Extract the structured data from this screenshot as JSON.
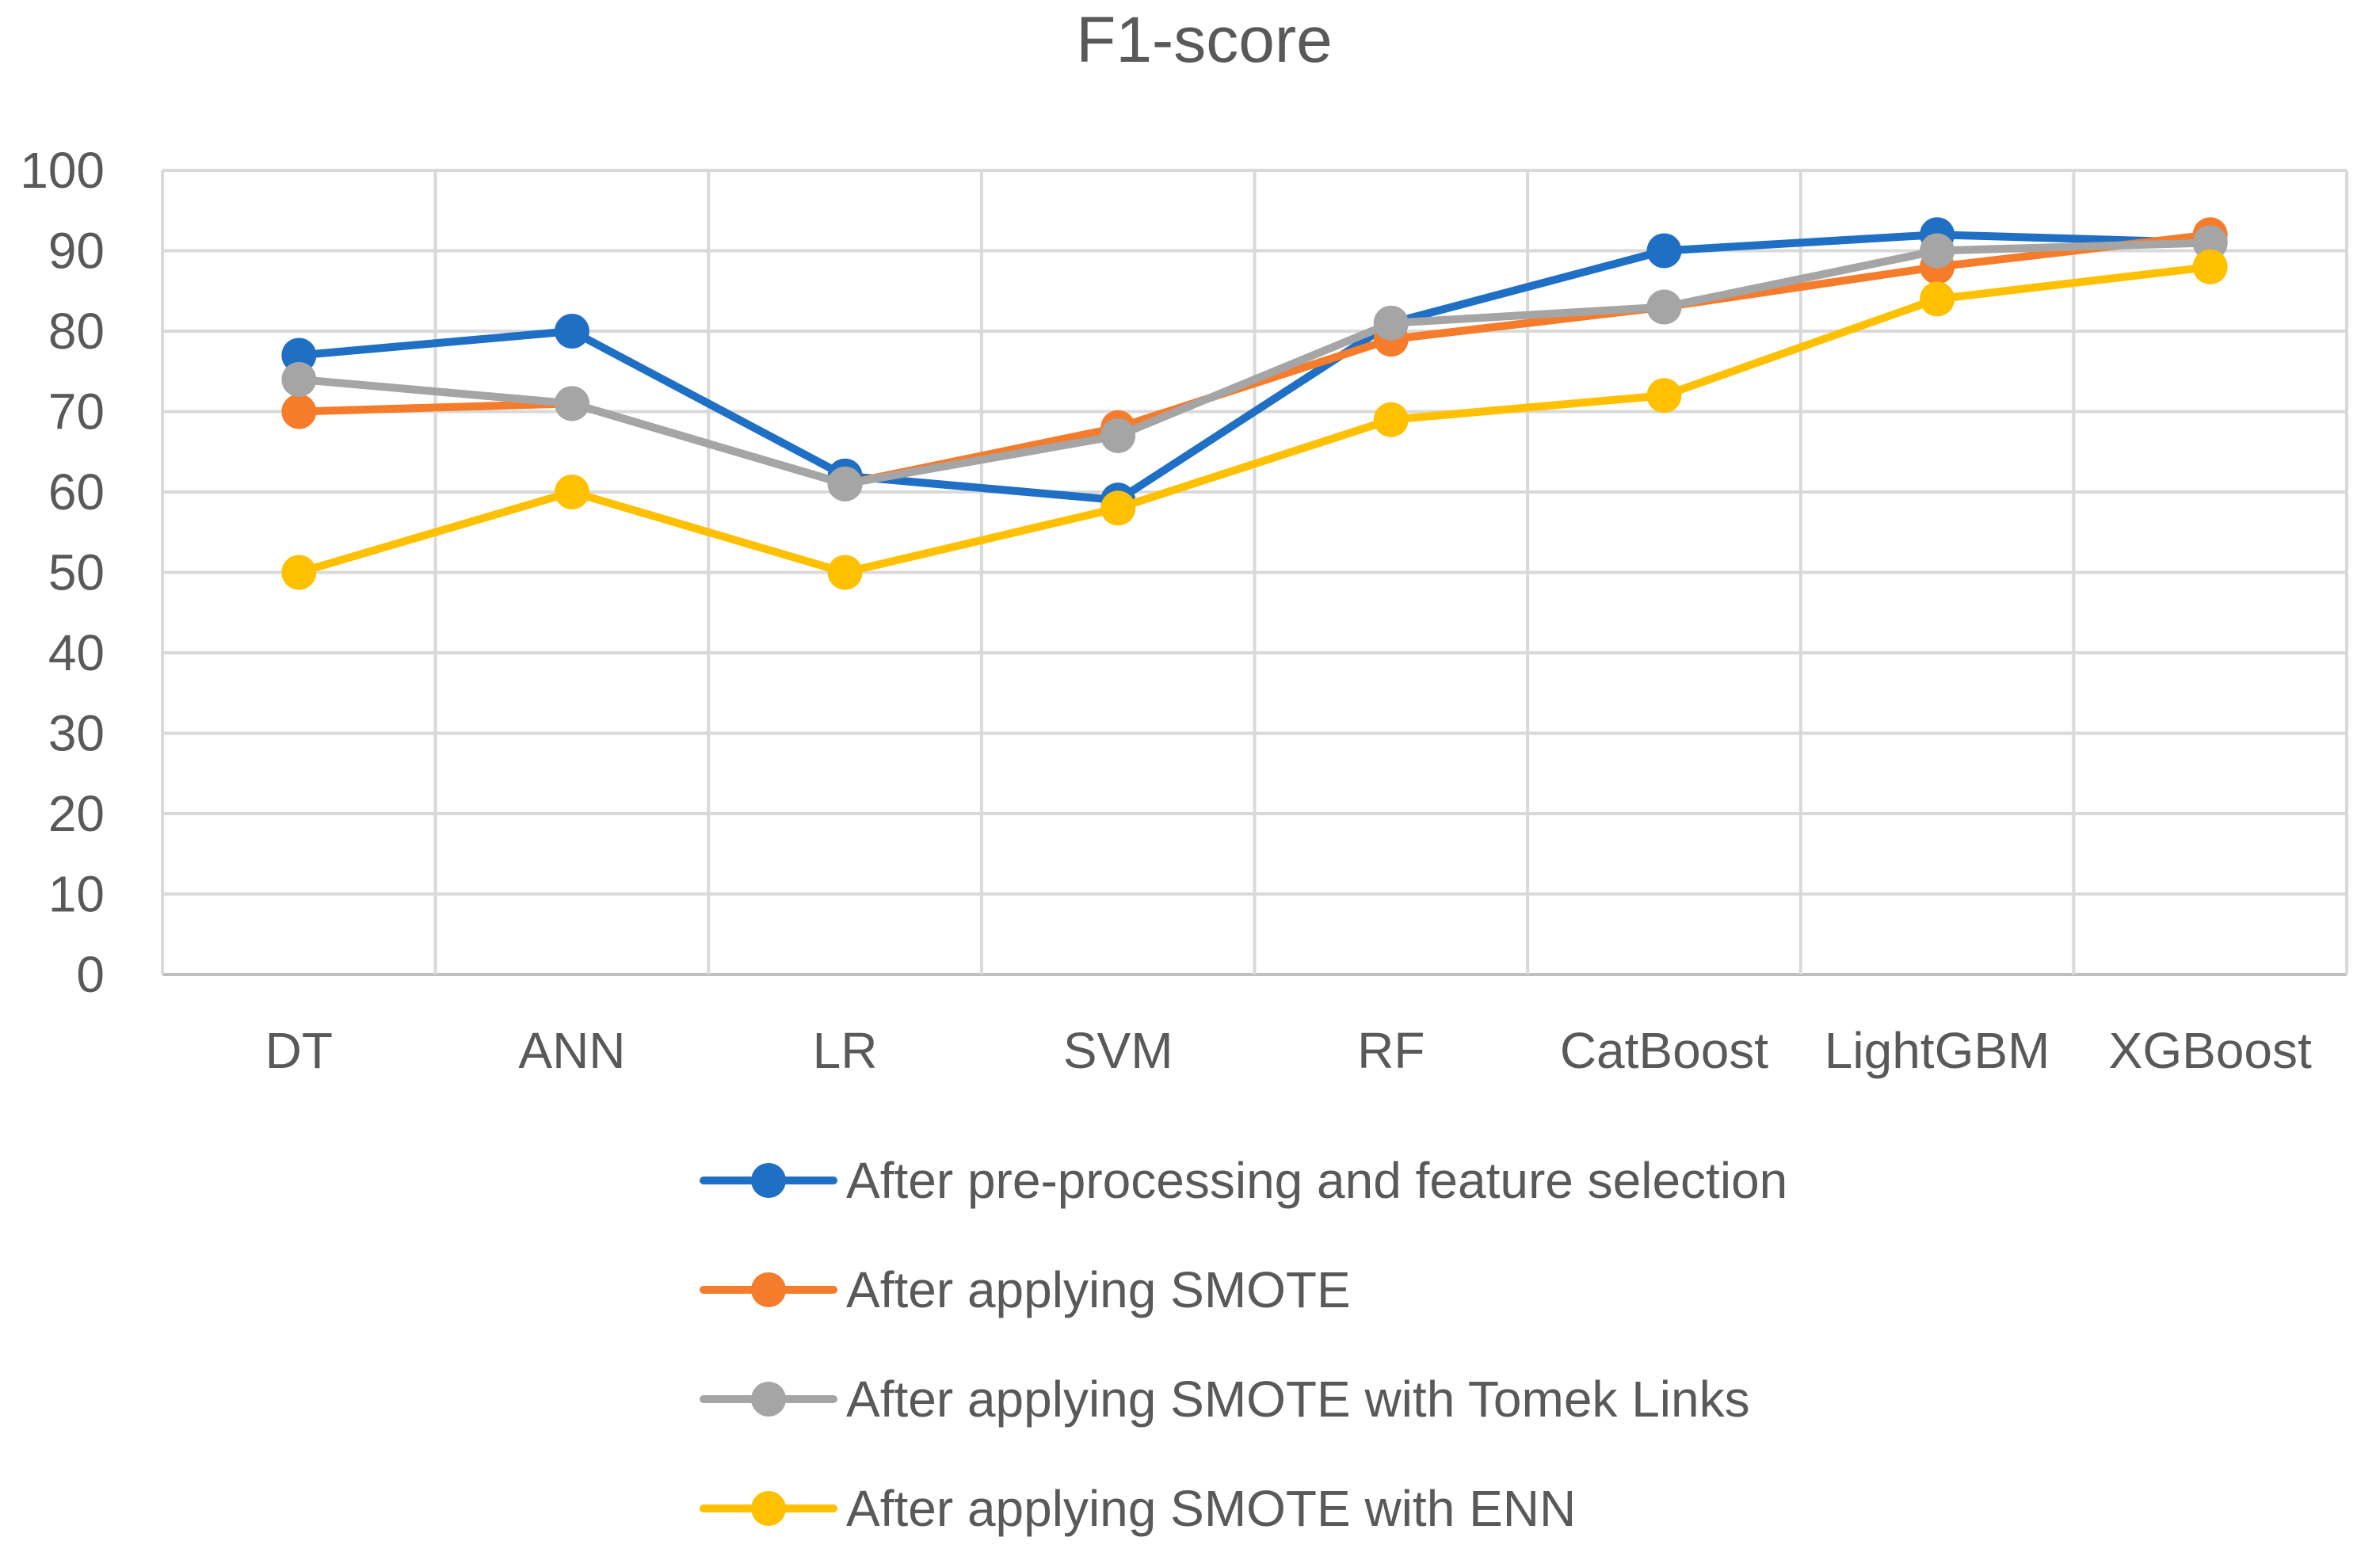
{
  "chart_data": {
    "type": "line",
    "title": "F1-score",
    "xlabel": "",
    "ylabel": "",
    "ylim": [
      0,
      100
    ],
    "yticks": [
      0,
      10,
      20,
      30,
      40,
      50,
      60,
      70,
      80,
      90,
      100
    ],
    "grid": true,
    "legend_position": "bottom",
    "categories": [
      "DT",
      "ANN",
      "LR",
      "SVM",
      "RF",
      "CatBoost",
      "LightGBM",
      "XGBoost"
    ],
    "series": [
      {
        "name": "After pre-processing and feature selection",
        "color": "#1F6FC5",
        "values": [
          77,
          80,
          62,
          59,
          81,
          90,
          92,
          91
        ]
      },
      {
        "name": "After applying SMOTE",
        "color": "#F57C2B",
        "values": [
          70,
          71,
          61,
          68,
          79,
          83,
          88,
          92
        ]
      },
      {
        "name": "After applying SMOTE with Tomek Links",
        "color": "#A5A5A5",
        "values": [
          74,
          71,
          61,
          67,
          81,
          83,
          90,
          91
        ]
      },
      {
        "name": "After applying SMOTE with ENN",
        "color": "#FFC000",
        "values": [
          50,
          60,
          50,
          58,
          69,
          72,
          84,
          88
        ]
      }
    ]
  }
}
